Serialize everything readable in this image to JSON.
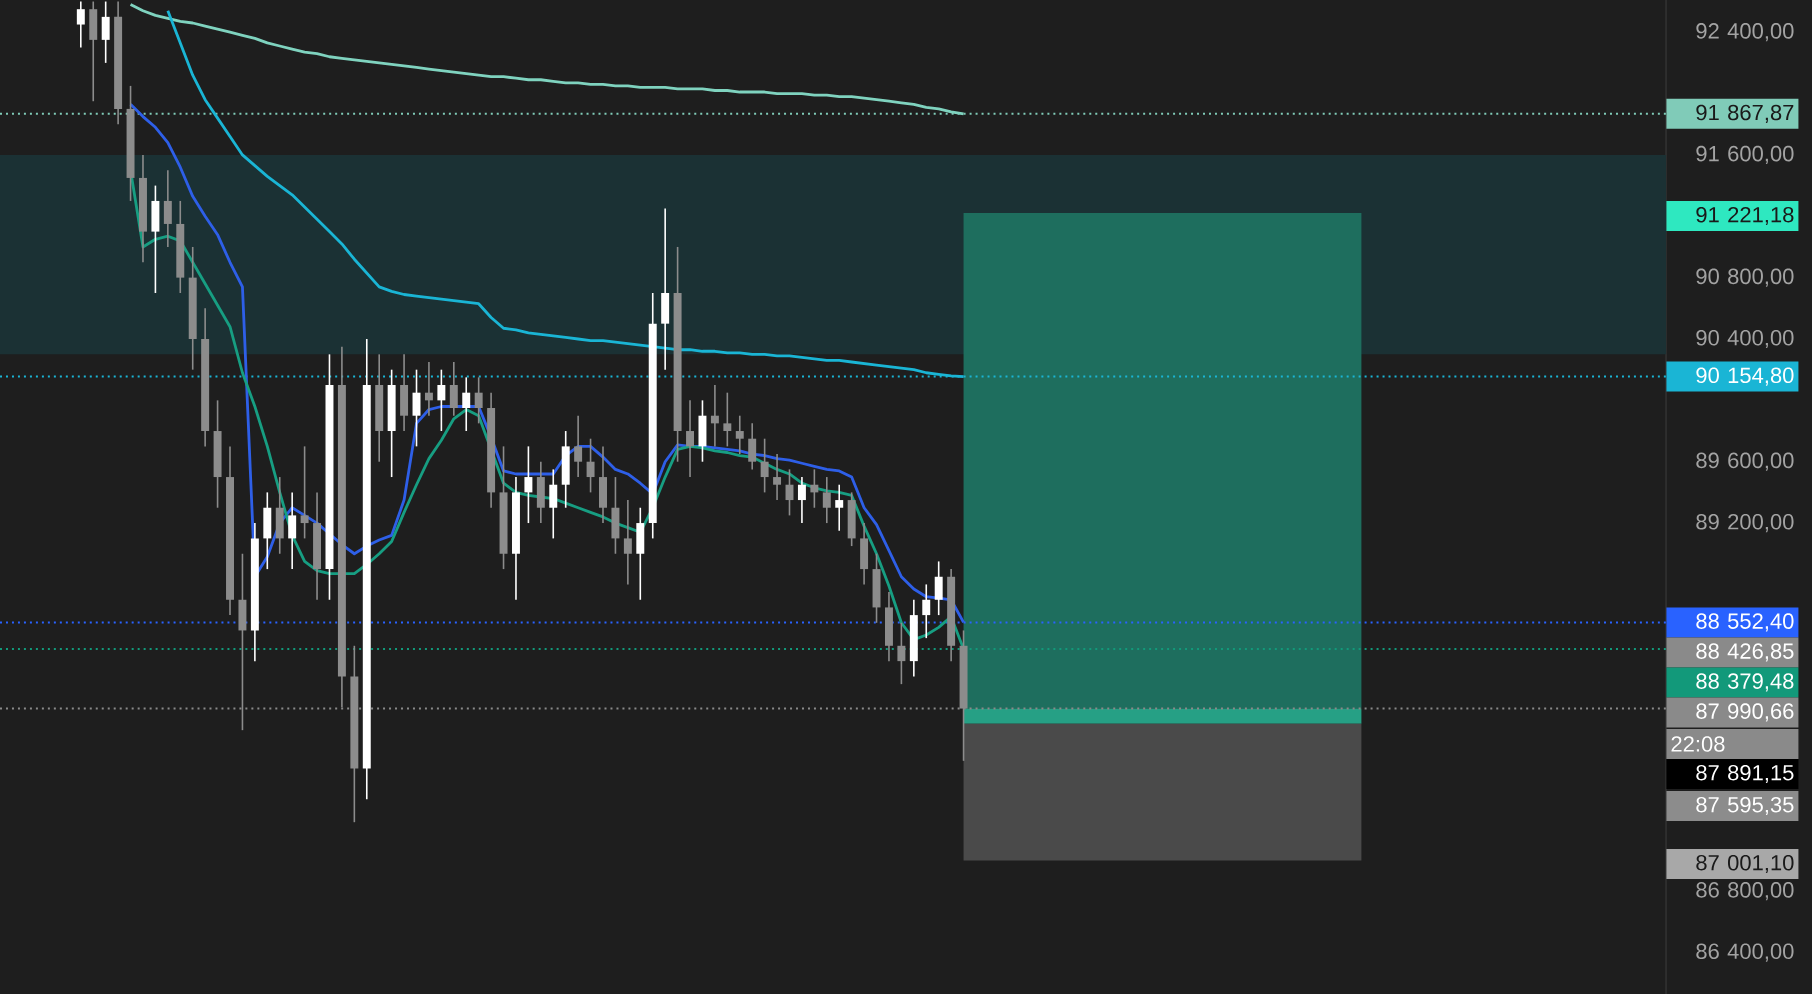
{
  "chart_data": {
    "type": "candlestick",
    "categories": [
      null,
      null,
      null,
      null,
      null,
      null,
      null,
      null,
      null,
      null,
      null,
      null,
      null,
      null,
      null,
      null,
      null,
      null,
      null,
      null,
      null,
      null,
      null,
      null,
      null,
      null,
      null,
      null,
      null,
      null,
      null,
      null,
      null,
      null,
      null,
      null,
      null,
      null,
      null,
      null,
      null,
      null,
      null,
      null,
      null,
      null,
      null,
      null,
      null,
      null,
      null,
      null,
      null,
      null,
      null,
      null,
      null,
      null,
      null,
      null,
      null,
      null,
      null,
      null,
      null,
      null,
      null,
      null,
      null,
      null,
      null,
      null,
      null,
      null,
      null,
      null,
      null,
      null,
      null,
      null,
      null,
      null,
      null,
      null,
      null,
      null,
      null,
      null,
      null,
      null,
      null,
      null,
      null,
      null,
      null,
      null,
      null,
      null,
      null,
      null,
      null,
      null,
      null,
      null,
      null,
      null,
      null,
      null,
      null,
      null,
      null,
      null,
      null,
      null,
      null,
      null,
      null,
      null,
      null,
      null,
      null,
      null,
      null,
      null,
      null,
      null,
      null,
      null,
      null,
      null,
      null,
      null,
      null,
      null
    ],
    "ohlc": [
      null,
      null,
      null,
      null,
      null,
      null,
      [
        92450,
        92600,
        92300,
        92550
      ],
      [
        92550,
        92600,
        91950,
        92350
      ],
      [
        92350,
        92600,
        92200,
        92500
      ],
      [
        92500,
        92600,
        91800,
        91900
      ],
      [
        91900,
        92050,
        91300,
        91450
      ],
      [
        91450,
        91600,
        90900,
        91100
      ],
      [
        91100,
        91400,
        90700,
        91300
      ],
      [
        91300,
        91500,
        91000,
        91150
      ],
      [
        91150,
        91300,
        90700,
        90800
      ],
      [
        90800,
        91000,
        90200,
        90400
      ],
      [
        90400,
        90600,
        89700,
        89800
      ],
      [
        89800,
        90000,
        89300,
        89500
      ],
      [
        89500,
        89700,
        88600,
        88700
      ],
      [
        88700,
        89000,
        87850,
        88500
      ],
      [
        88500,
        89200,
        88300,
        89100
      ],
      [
        89100,
        89400,
        88900,
        89300
      ],
      [
        89300,
        89500,
        89000,
        89100
      ],
      [
        89100,
        89400,
        88900,
        89250
      ],
      [
        89250,
        89700,
        89100,
        89200
      ],
      [
        89200,
        89400,
        88700,
        88900
      ],
      [
        88900,
        90300,
        88700,
        90100
      ],
      [
        90100,
        90350,
        88000,
        88200
      ],
      [
        88200,
        88400,
        87250,
        87600
      ],
      [
        87600,
        90400,
        87400,
        90100
      ],
      [
        90100,
        90300,
        89600,
        89800
      ],
      [
        89800,
        90200,
        89500,
        90100
      ],
      [
        90100,
        90300,
        89800,
        89900
      ],
      [
        89900,
        90200,
        89700,
        90050
      ],
      [
        90050,
        90250,
        89900,
        90000
      ],
      [
        90000,
        90200,
        89800,
        90100
      ],
      [
        90100,
        90250,
        89900,
        89950
      ],
      [
        89950,
        90150,
        89800,
        90050
      ],
      [
        90050,
        90150,
        89850,
        89950
      ],
      [
        89950,
        90050,
        89300,
        89400
      ],
      [
        89400,
        89700,
        88900,
        89000
      ],
      [
        89000,
        89500,
        88700,
        89400
      ],
      [
        89400,
        89700,
        89200,
        89500
      ],
      [
        89500,
        89600,
        89200,
        89300
      ],
      [
        89300,
        89550,
        89100,
        89450
      ],
      [
        89450,
        89800,
        89300,
        89700
      ],
      [
        89700,
        89900,
        89500,
        89600
      ],
      [
        89600,
        89750,
        89400,
        89500
      ],
      [
        89500,
        89700,
        89200,
        89300
      ],
      [
        89300,
        89500,
        89000,
        89100
      ],
      [
        89100,
        89350,
        88800,
        89000
      ],
      [
        89000,
        89300,
        88700,
        89200
      ],
      [
        89200,
        90700,
        89100,
        90500
      ],
      [
        90500,
        91250,
        90200,
        90700
      ],
      [
        90700,
        91000,
        89600,
        89800
      ],
      [
        89800,
        90000,
        89500,
        89700
      ],
      [
        89700,
        90000,
        89600,
        89900
      ],
      [
        89900,
        90100,
        89700,
        89850
      ],
      [
        89850,
        90050,
        89700,
        89800
      ],
      [
        89800,
        89900,
        89650,
        89750
      ],
      [
        89750,
        89850,
        89550,
        89600
      ],
      [
        89600,
        89750,
        89400,
        89500
      ],
      [
        89500,
        89650,
        89350,
        89450
      ],
      [
        89450,
        89550,
        89250,
        89350
      ],
      [
        89350,
        89500,
        89200,
        89450
      ],
      [
        89450,
        89550,
        89300,
        89400
      ],
      [
        89400,
        89500,
        89200,
        89300
      ],
      [
        89300,
        89450,
        89150,
        89350
      ],
      [
        89350,
        89400,
        89050,
        89100
      ],
      [
        89100,
        89200,
        88800,
        88900
      ],
      [
        88900,
        89000,
        88550,
        88650
      ],
      [
        88650,
        88750,
        88300,
        88400
      ],
      [
        88400,
        88550,
        88150,
        88300
      ],
      [
        88300,
        88700,
        88200,
        88600
      ],
      [
        88600,
        88800,
        88450,
        88700
      ],
      [
        88700,
        88950,
        88600,
        88850
      ],
      [
        88850,
        88900,
        88300,
        88400
      ],
      [
        88400,
        88500,
        87650,
        87990.66
      ],
      null,
      null,
      null,
      null,
      null,
      null,
      null,
      null,
      null,
      null,
      null,
      null,
      null,
      null,
      null,
      null,
      null,
      null,
      null,
      null,
      null,
      null,
      null,
      null,
      null,
      null,
      null,
      null,
      null,
      null,
      null,
      null,
      null,
      null,
      null,
      null,
      null,
      null,
      null,
      null,
      null,
      null,
      null,
      null,
      null,
      null,
      null,
      null,
      null,
      null,
      null,
      null,
      null,
      null,
      null,
      null
    ],
    "series": [
      {
        "type": "line",
        "color": "#7fd3bf",
        "values": [
          null,
          null,
          null,
          null,
          null,
          null,
          null,
          null,
          null,
          null,
          92580,
          92540,
          92510,
          92490,
          92470,
          92460,
          92440,
          92420,
          92400,
          92380,
          92360,
          92330,
          92310,
          92290,
          92270,
          92260,
          92240,
          92230,
          92220,
          92210,
          92200,
          92190,
          92180,
          92170,
          92160,
          92150,
          92140,
          92130,
          92120,
          92110,
          92110,
          92100,
          92090,
          92090,
          92080,
          92070,
          92070,
          92060,
          92060,
          92050,
          92050,
          92040,
          92040,
          92040,
          92030,
          92030,
          92030,
          92020,
          92020,
          92010,
          92010,
          92010,
          92000,
          92000,
          92000,
          91990,
          91990,
          91980,
          91980,
          91970,
          91960,
          91950,
          91940,
          91930,
          91910,
          91900,
          91880,
          91867.87,
          null,
          null,
          null,
          null,
          null,
          null,
          null,
          null,
          null,
          null,
          null,
          null,
          null,
          null,
          null,
          null,
          null,
          null,
          null,
          null,
          null,
          null,
          null,
          null,
          null,
          null,
          null,
          null,
          null,
          null,
          null,
          null,
          null,
          null,
          null,
          null,
          null,
          null,
          null,
          null,
          null,
          null,
          null,
          null,
          null,
          null,
          null,
          null,
          null,
          null,
          null,
          null,
          null,
          null,
          null,
          null
        ]
      },
      {
        "type": "line",
        "color": "#1ab5d5",
        "values": [
          null,
          null,
          null,
          null,
          null,
          null,
          null,
          null,
          null,
          null,
          null,
          null,
          null,
          92540,
          92330,
          92120,
          91960,
          91840,
          91720,
          91600,
          91530,
          91460,
          91400,
          91340,
          91260,
          91180,
          91100,
          91020,
          90920,
          90830,
          90740,
          90710,
          90690,
          90680,
          90670,
          90660,
          90650,
          90640,
          90630,
          90540,
          90470,
          90460,
          90440,
          90430,
          90420,
          90410,
          90400,
          90390,
          90390,
          90380,
          90370,
          90360,
          90350,
          90340,
          90330,
          90330,
          90320,
          90320,
          90310,
          90310,
          90300,
          90300,
          90290,
          90290,
          90280,
          90270,
          90260,
          90260,
          90250,
          90240,
          90230,
          90220,
          90210,
          90200,
          90180,
          90170,
          90160,
          90154.8,
          null,
          null,
          null,
          null,
          null,
          null,
          null,
          null,
          null,
          null,
          null,
          null,
          null,
          null,
          null,
          null,
          null,
          null,
          null,
          null,
          null,
          null,
          null,
          null,
          null,
          null,
          null,
          null,
          null,
          null,
          null,
          null,
          null,
          null,
          null,
          null,
          null,
          null,
          null,
          null,
          null,
          null,
          null,
          null,
          null,
          null,
          null,
          null,
          null,
          null,
          null,
          null,
          null,
          null,
          null,
          null
        ]
      },
      {
        "type": "line",
        "color": "#2e5fe8",
        "values": [
          null,
          null,
          null,
          null,
          null,
          null,
          null,
          null,
          null,
          null,
          91930,
          91850,
          91780,
          91680,
          91520,
          91330,
          91200,
          91080,
          90900,
          90740,
          88850,
          88980,
          89200,
          89300,
          89250,
          89200,
          89130,
          89060,
          89000,
          89050,
          89090,
          89120,
          89350,
          89850,
          89940,
          89960,
          89960,
          89960,
          89960,
          89760,
          89540,
          89520,
          89520,
          89520,
          89520,
          89640,
          89700,
          89700,
          89630,
          89550,
          89520,
          89460,
          89390,
          89600,
          89710,
          89700,
          89700,
          89690,
          89680,
          89670,
          89650,
          89640,
          89620,
          89610,
          89590,
          89570,
          89550,
          89540,
          89500,
          89300,
          89190,
          89020,
          88850,
          88770,
          88720,
          88710,
          88700,
          88552.4,
          null,
          null,
          null,
          null,
          null,
          null,
          null,
          null,
          null,
          null,
          null,
          null,
          null,
          null,
          null,
          null,
          null,
          null,
          null,
          null,
          null,
          null,
          null,
          null,
          null,
          null,
          null,
          null,
          null,
          null,
          null,
          null,
          null,
          null,
          null,
          null,
          null,
          null,
          null,
          null,
          null,
          null,
          null,
          null,
          null,
          null,
          null,
          null,
          null,
          null,
          null,
          null,
          null,
          null,
          null,
          null
        ]
      },
      {
        "type": "line",
        "color": "#179e82",
        "values": [
          null,
          null,
          null,
          null,
          null,
          null,
          null,
          null,
          null,
          null,
          91500,
          91000,
          91050,
          91070,
          91040,
          90900,
          90760,
          90620,
          90480,
          90180,
          89960,
          89700,
          89400,
          89120,
          88950,
          88890,
          88870,
          88870,
          88870,
          88930,
          89000,
          89080,
          89270,
          89450,
          89620,
          89740,
          89880,
          89940,
          89900,
          89680,
          89460,
          89400,
          89380,
          89370,
          89360,
          89330,
          89300,
          89270,
          89240,
          89200,
          89170,
          89140,
          89300,
          89500,
          89680,
          89700,
          89690,
          89670,
          89660,
          89640,
          89630,
          89590,
          89550,
          89520,
          89460,
          89430,
          89410,
          89400,
          89380,
          89180,
          89000,
          88790,
          88550,
          88440,
          88470,
          88520,
          88590,
          88379.48,
          null,
          null,
          null,
          null,
          null,
          null,
          null,
          null,
          null,
          null,
          null,
          null,
          null,
          null,
          null,
          null,
          null,
          null,
          null,
          null,
          null,
          null,
          null,
          null,
          null,
          null,
          null,
          null,
          null,
          null,
          null,
          null,
          null,
          null,
          null,
          null,
          null,
          null,
          null,
          null,
          null,
          null,
          null,
          null,
          null,
          null,
          null,
          null,
          null,
          null,
          null,
          null,
          null,
          null,
          null,
          null
        ]
      }
    ],
    "ylim": [
      86130,
      92610
    ],
    "yticks": [
      {
        "value": 92400,
        "label": "92 400,00"
      },
      {
        "value": 91600,
        "label": "91 600,00"
      },
      {
        "value": 90800,
        "label": "90 800,00"
      },
      {
        "value": 90400,
        "label": "90 400,00"
      },
      {
        "value": 89600,
        "label": "89 600,00"
      },
      {
        "value": 89200,
        "label": "89 200,00"
      },
      {
        "value": 86800,
        "label": "86 800,00"
      },
      {
        "value": 86400,
        "label": "86 400,00"
      }
    ],
    "ref_lines": [
      {
        "axis": "y",
        "value": 91867.87,
        "label": "91 867,87",
        "color": "#80cbb8",
        "line_style": "dotted"
      },
      {
        "axis": "y",
        "value": 90154.8,
        "label": "90 154,80",
        "color": "#1ab5d5",
        "line_style": "dotted"
      },
      {
        "axis": "y",
        "value": 88552.4,
        "label": "88 552,40",
        "color": "#2962ff",
        "line_style": "dotted"
      },
      {
        "axis": "y",
        "value": 88379.48,
        "label": "88 379,48",
        "color": "#12997a",
        "line_style": "dotted"
      },
      {
        "axis": "y",
        "value": 87990.66,
        "label": "87 990,66",
        "color": "#8a8a8a",
        "line_style": "dotted"
      }
    ],
    "bands": [
      {
        "axis": "y",
        "from": 90300,
        "to": 91600,
        "color": "#1b3134"
      },
      {
        "axis": "y",
        "from": 87990.66,
        "to": 91221.18,
        "color": "#1e6e5e"
      },
      {
        "axis": "y",
        "from": 87891.15,
        "to": 87990.66,
        "color": "#26a085"
      },
      {
        "axis": "y",
        "from": 87001.1,
        "to": 87891.15,
        "color": "#4a4a4a"
      }
    ],
    "annotations": [
      "91 221,18",
      "22:08",
      "88 426,85",
      "87 891,15",
      "87 595,35",
      "87 001,10"
    ]
  }
}
